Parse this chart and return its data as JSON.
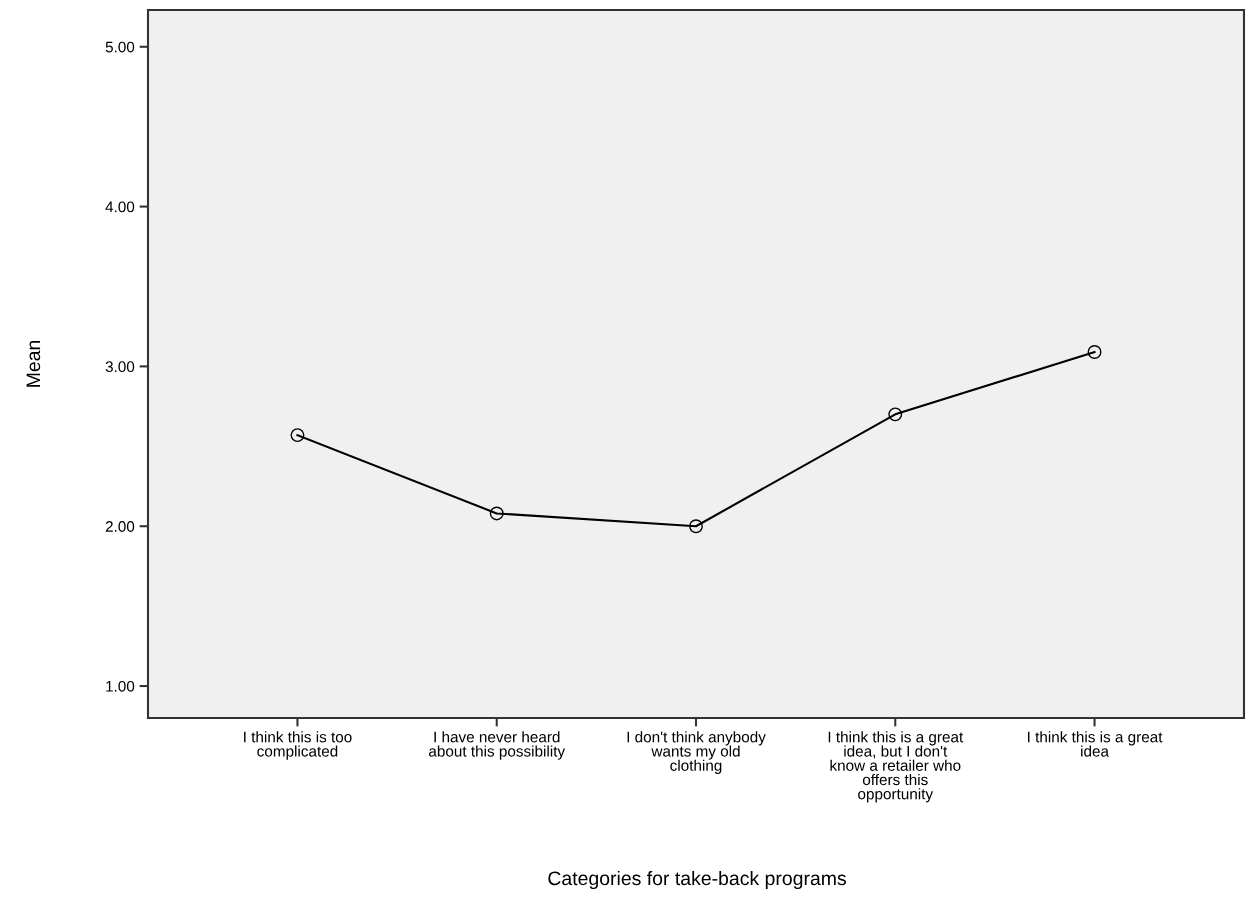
{
  "chart_data": {
    "type": "line",
    "xlabel": "Categories for take-back programs",
    "ylabel": "Mean",
    "categories": [
      "I think this is too\ncomplicated",
      "I have never heard\nabout this possibility",
      "I don't think anybody\nwants my old\nclothing",
      "I think this is a great\nidea, but I don't\nknow a retailer who\noffers this\nopportunity",
      "I think this is a great\nidea"
    ],
    "series": [
      {
        "color": "#000000",
        "values": [
          2.57,
          2.08,
          2.0,
          2.7,
          3.09
        ]
      }
    ],
    "ylim": [
      0.8,
      5.23
    ],
    "yticks": [
      {
        "value": 1,
        "label": "1.00"
      },
      {
        "value": 2,
        "label": "2.00"
      },
      {
        "value": 3,
        "label": "3.00"
      },
      {
        "value": 4,
        "label": "4.00"
      },
      {
        "value": 5,
        "label": "5.00"
      }
    ],
    "grid": false,
    "marker": "circle",
    "line_style": "solid"
  }
}
